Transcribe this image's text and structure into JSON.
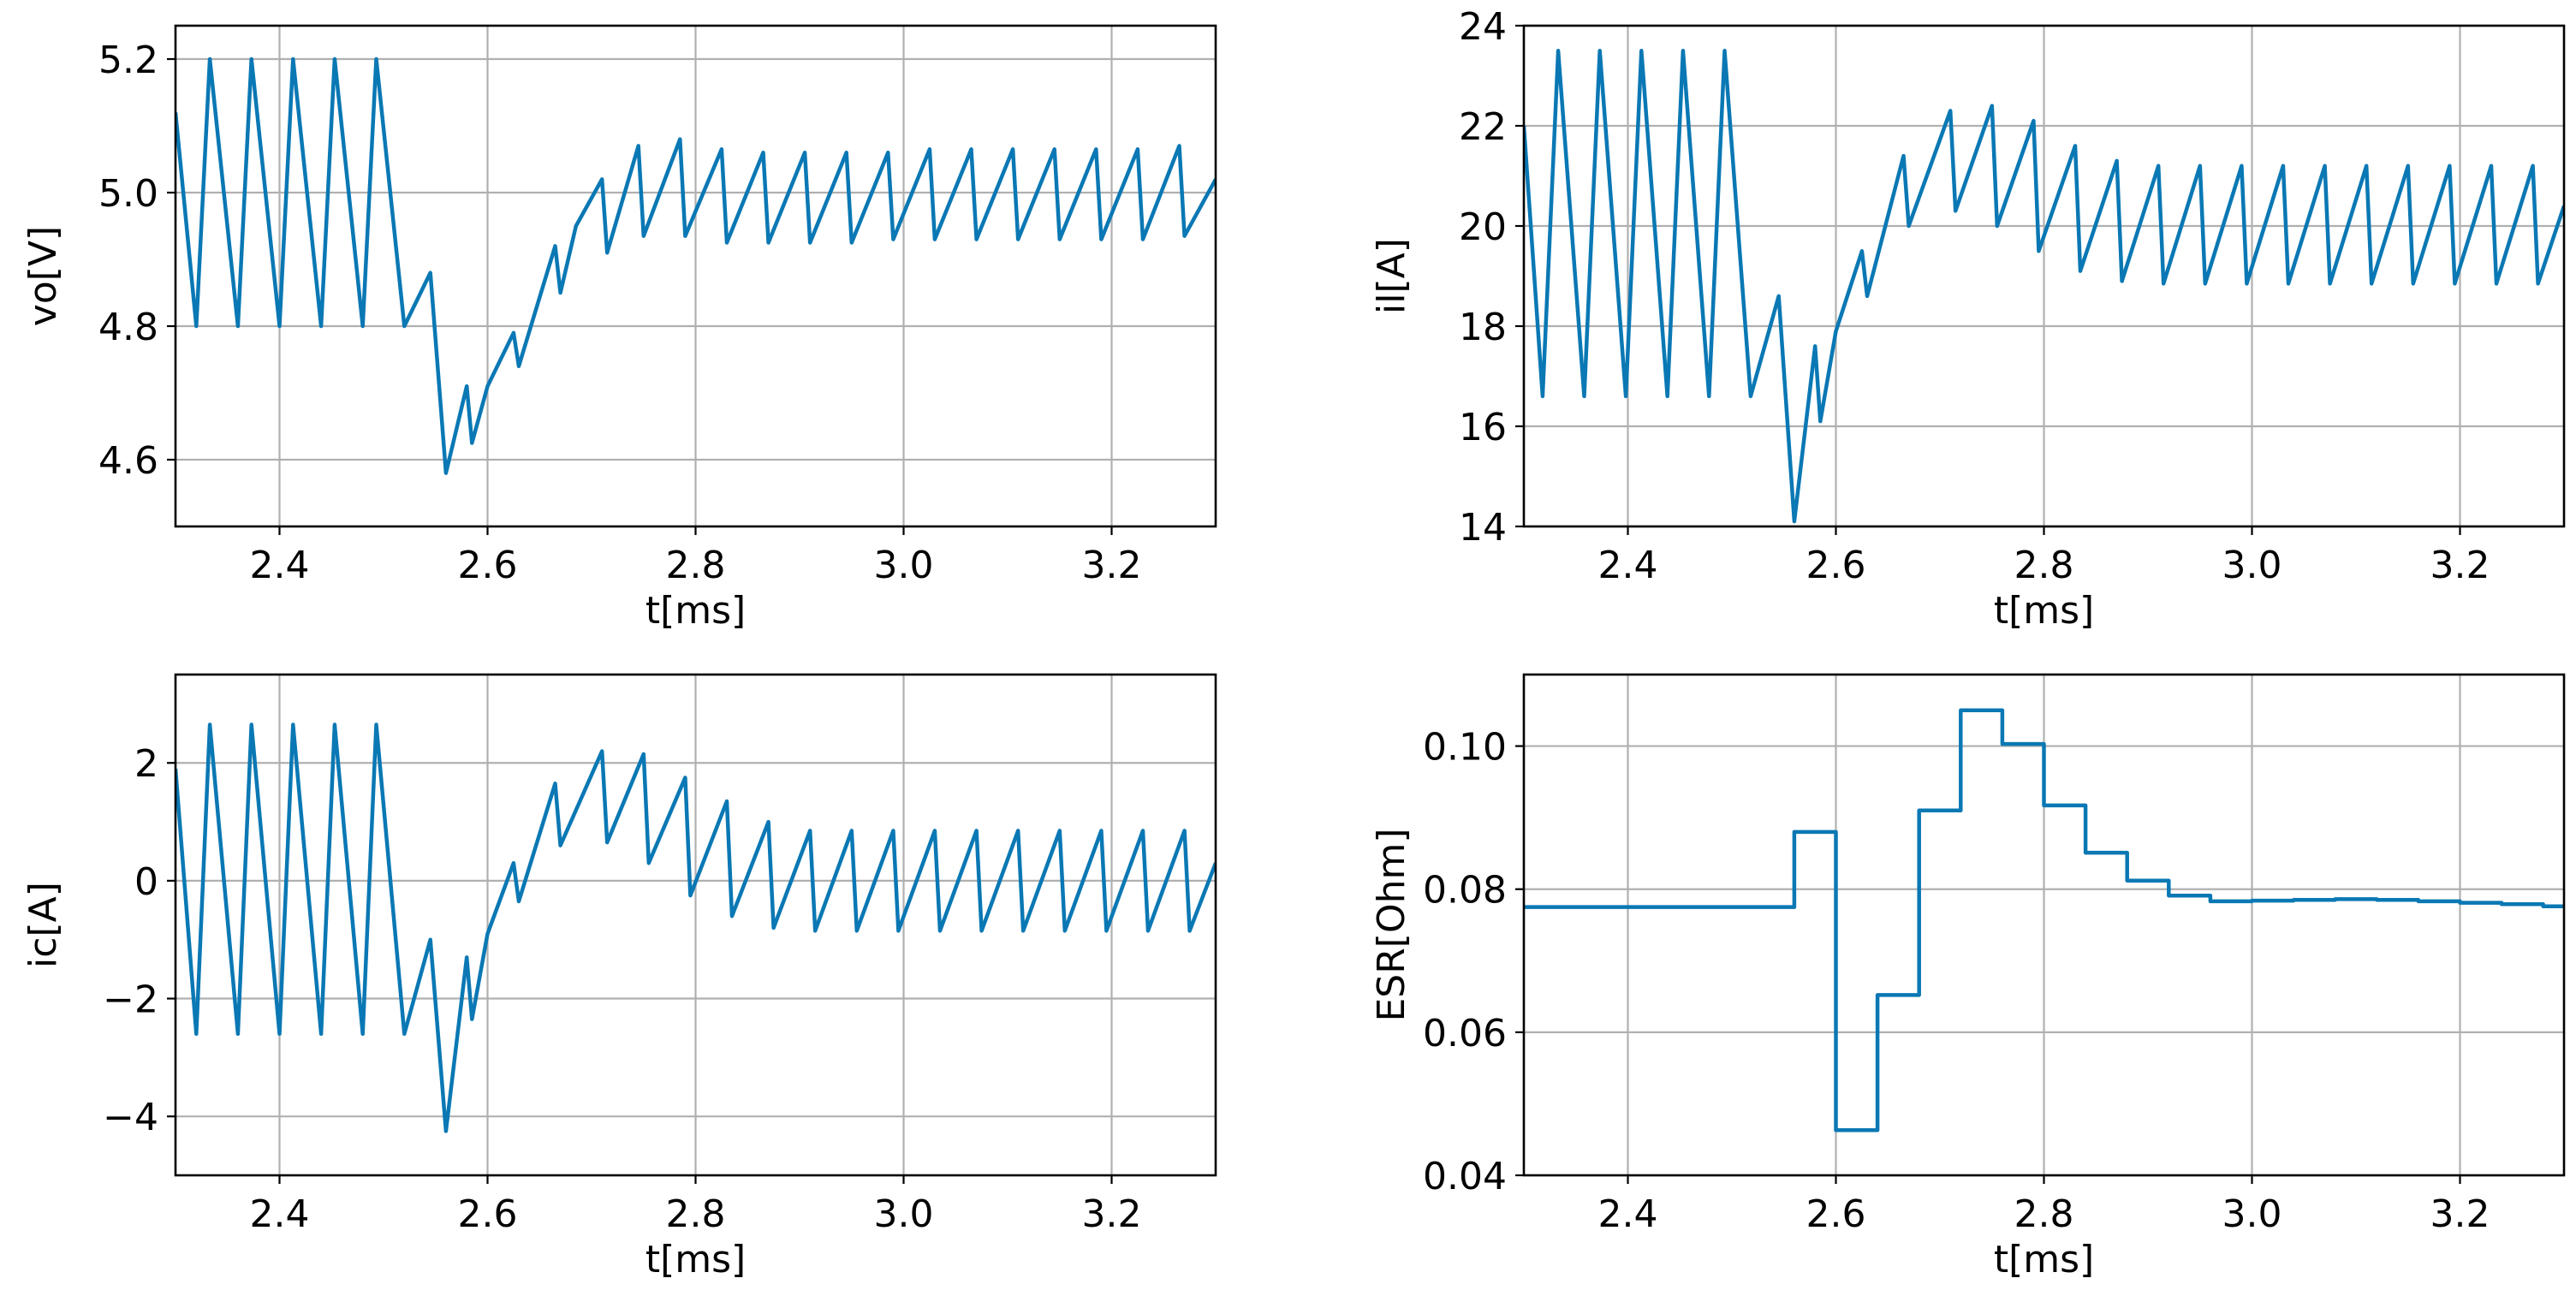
{
  "figure": {
    "background": "#ffffff",
    "line_color": "#0a78b4"
  },
  "chart_data": [
    {
      "id": "vo",
      "type": "line",
      "ylabel": "vo[V]",
      "xlabel": "t[ms]",
      "xlim": [
        2.3,
        3.3
      ],
      "ylim": [
        4.5,
        5.25
      ],
      "xticks": [
        2.4,
        2.6,
        2.8,
        3.0,
        3.2
      ],
      "xtick_labels": [
        "2.4",
        "2.6",
        "2.8",
        "3.0",
        "3.2"
      ],
      "yticks": [
        4.6,
        4.8,
        5.0,
        5.2
      ],
      "ytick_labels": [
        "4.6",
        "4.8",
        "5.0",
        "5.2"
      ],
      "series": [
        {
          "name": "vo",
          "x": [
            2.3,
            2.32,
            2.333,
            2.36,
            2.373,
            2.4,
            2.413,
            2.44,
            2.453,
            2.48,
            2.493,
            2.52,
            2.545,
            2.56,
            2.58,
            2.585,
            2.6,
            2.625,
            2.63,
            2.665,
            2.67,
            2.685,
            2.71,
            2.715,
            2.745,
            2.75,
            2.785,
            2.79,
            2.825,
            2.83,
            2.865,
            2.87,
            2.905,
            2.91,
            2.945,
            2.95,
            2.985,
            2.99,
            3.025,
            3.03,
            3.065,
            3.07,
            3.105,
            3.11,
            3.145,
            3.15,
            3.185,
            3.19,
            3.225,
            3.23,
            3.265,
            3.27,
            3.3
          ],
          "values": [
            5.12,
            4.8,
            5.2,
            4.8,
            5.2,
            4.8,
            5.2,
            4.8,
            5.2,
            4.8,
            5.2,
            4.8,
            4.88,
            4.58,
            4.71,
            4.625,
            4.71,
            4.79,
            4.74,
            4.92,
            4.85,
            4.95,
            5.02,
            4.91,
            5.07,
            4.935,
            5.08,
            4.935,
            5.065,
            4.925,
            5.06,
            4.925,
            5.06,
            4.925,
            5.06,
            4.925,
            5.06,
            4.93,
            5.065,
            4.93,
            5.065,
            4.93,
            5.065,
            4.93,
            5.065,
            4.93,
            5.065,
            4.93,
            5.065,
            4.93,
            5.07,
            4.935,
            5.02
          ]
        }
      ]
    },
    {
      "id": "il",
      "type": "line",
      "ylabel": "il[A]",
      "xlabel": "t[ms]",
      "xlim": [
        2.3,
        3.3
      ],
      "ylim": [
        14,
        24
      ],
      "xticks": [
        2.4,
        2.6,
        2.8,
        3.0,
        3.2
      ],
      "xtick_labels": [
        "2.4",
        "2.6",
        "2.8",
        "3.0",
        "3.2"
      ],
      "yticks": [
        14,
        16,
        18,
        20,
        22,
        24
      ],
      "ytick_labels": [
        "14",
        "16",
        "18",
        "20",
        "22",
        "24"
      ],
      "series": [
        {
          "name": "il",
          "x": [
            2.3,
            2.318,
            2.333,
            2.358,
            2.373,
            2.398,
            2.413,
            2.438,
            2.453,
            2.478,
            2.493,
            2.518,
            2.545,
            2.56,
            2.58,
            2.585,
            2.6,
            2.625,
            2.63,
            2.665,
            2.67,
            2.71,
            2.715,
            2.75,
            2.755,
            2.79,
            2.795,
            2.83,
            2.835,
            2.87,
            2.875,
            2.91,
            2.915,
            2.95,
            2.955,
            2.99,
            2.995,
            3.03,
            3.035,
            3.07,
            3.075,
            3.11,
            3.115,
            3.15,
            3.155,
            3.19,
            3.195,
            3.23,
            3.235,
            3.27,
            3.275,
            3.3
          ],
          "values": [
            22.0,
            16.6,
            23.5,
            16.6,
            23.5,
            16.6,
            23.5,
            16.6,
            23.5,
            16.6,
            23.5,
            16.6,
            18.6,
            14.1,
            17.6,
            16.1,
            17.9,
            19.5,
            18.6,
            21.4,
            20.0,
            22.3,
            20.3,
            22.4,
            20.0,
            22.1,
            19.5,
            21.6,
            19.1,
            21.3,
            18.9,
            21.2,
            18.85,
            21.2,
            18.85,
            21.2,
            18.85,
            21.2,
            18.85,
            21.2,
            18.85,
            21.2,
            18.85,
            21.2,
            18.85,
            21.2,
            18.85,
            21.2,
            18.85,
            21.2,
            18.85,
            20.4
          ]
        }
      ]
    },
    {
      "id": "ic",
      "type": "line",
      "ylabel": "ic[A]",
      "xlabel": "t[ms]",
      "xlim": [
        2.3,
        3.3
      ],
      "ylim": [
        -5,
        3.5
      ],
      "xticks": [
        2.4,
        2.6,
        2.8,
        3.0,
        3.2
      ],
      "xtick_labels": [
        "2.4",
        "2.6",
        "2.8",
        "3.0",
        "3.2"
      ],
      "yticks": [
        -4,
        -2,
        0,
        2
      ],
      "ytick_labels": [
        "−4",
        "−2",
        "0",
        "2"
      ],
      "series": [
        {
          "name": "ic",
          "x": [
            2.3,
            2.32,
            2.333,
            2.36,
            2.373,
            2.4,
            2.413,
            2.44,
            2.453,
            2.48,
            2.493,
            2.52,
            2.545,
            2.56,
            2.58,
            2.585,
            2.6,
            2.625,
            2.63,
            2.665,
            2.67,
            2.71,
            2.715,
            2.75,
            2.755,
            2.79,
            2.795,
            2.83,
            2.835,
            2.87,
            2.875,
            2.91,
            2.915,
            2.95,
            2.955,
            2.99,
            2.995,
            3.03,
            3.035,
            3.07,
            3.075,
            3.11,
            3.115,
            3.15,
            3.155,
            3.19,
            3.195,
            3.23,
            3.235,
            3.27,
            3.275,
            3.3
          ],
          "values": [
            1.9,
            -2.6,
            2.65,
            -2.6,
            2.65,
            -2.6,
            2.65,
            -2.6,
            2.65,
            -2.6,
            2.65,
            -2.6,
            -1.0,
            -4.25,
            -1.3,
            -2.35,
            -0.9,
            0.3,
            -0.35,
            1.65,
            0.6,
            2.2,
            0.65,
            2.15,
            0.3,
            1.75,
            -0.25,
            1.35,
            -0.6,
            1.0,
            -0.8,
            0.85,
            -0.85,
            0.85,
            -0.85,
            0.85,
            -0.85,
            0.85,
            -0.85,
            0.85,
            -0.85,
            0.85,
            -0.85,
            0.85,
            -0.85,
            0.85,
            -0.85,
            0.85,
            -0.85,
            0.85,
            -0.85,
            0.3
          ]
        }
      ]
    },
    {
      "id": "esr",
      "type": "line",
      "step": "post",
      "ylabel": "ESR[Ohm]",
      "xlabel": "t[ms]",
      "xlim": [
        2.3,
        3.3
      ],
      "ylim": [
        0.04,
        0.11
      ],
      "xticks": [
        2.4,
        2.6,
        2.8,
        3.0,
        3.2
      ],
      "xtick_labels": [
        "2.4",
        "2.6",
        "2.8",
        "3.0",
        "3.2"
      ],
      "yticks": [
        0.04,
        0.06,
        0.08,
        0.1
      ],
      "ytick_labels": [
        "0.04",
        "0.06",
        "0.08",
        "0.10"
      ],
      "series": [
        {
          "name": "ESR",
          "x": [
            2.3,
            2.56,
            2.6,
            2.64,
            2.68,
            2.72,
            2.76,
            2.8,
            2.84,
            2.88,
            2.92,
            2.96,
            3.0,
            3.04,
            3.08,
            3.12,
            3.16,
            3.2,
            3.24,
            3.28,
            3.3
          ],
          "values": [
            0.0775,
            0.088,
            0.0463,
            0.0652,
            0.091,
            0.105,
            0.1003,
            0.0917,
            0.0851,
            0.0812,
            0.0791,
            0.0783,
            0.0784,
            0.0785,
            0.0786,
            0.0785,
            0.0783,
            0.0781,
            0.0779,
            0.0776,
            0.0776
          ]
        }
      ]
    }
  ]
}
